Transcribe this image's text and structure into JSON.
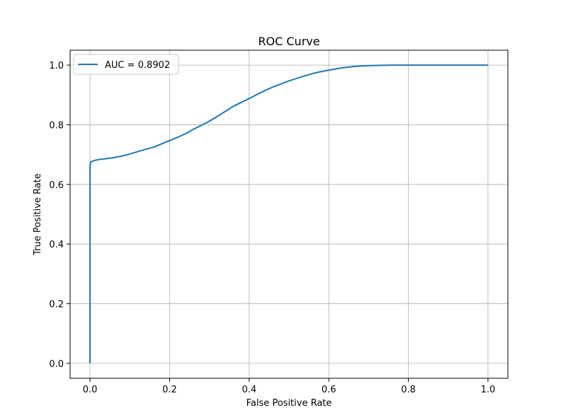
{
  "chart_data": {
    "type": "line",
    "title": "ROC Curve",
    "xlabel": "False Positive Rate",
    "ylabel": "True Positive Rate",
    "xlim": [
      -0.05,
      1.05
    ],
    "ylim": [
      -0.05,
      1.05
    ],
    "xticks": [
      "0.0",
      "0.2",
      "0.4",
      "0.6",
      "0.8",
      "1.0"
    ],
    "yticks": [
      "0.0",
      "0.2",
      "0.4",
      "0.6",
      "0.8",
      "1.0"
    ],
    "grid": true,
    "legend_position": "top-left",
    "series": [
      {
        "name": "AUC = 0.8902",
        "color": "#1f77b4",
        "x": [
          0.0,
          0.0,
          0.0,
          0.002,
          0.01,
          0.02,
          0.04,
          0.06,
          0.08,
          0.1,
          0.12,
          0.14,
          0.16,
          0.18,
          0.2,
          0.22,
          0.24,
          0.26,
          0.28,
          0.3,
          0.32,
          0.34,
          0.36,
          0.38,
          0.4,
          0.42,
          0.44,
          0.46,
          0.48,
          0.5,
          0.52,
          0.54,
          0.56,
          0.58,
          0.6,
          0.62,
          0.64,
          0.66,
          0.68,
          0.7,
          0.72,
          0.76,
          0.8,
          0.9,
          1.0
        ],
        "y": [
          0.0,
          0.6,
          0.665,
          0.675,
          0.68,
          0.683,
          0.686,
          0.69,
          0.695,
          0.702,
          0.71,
          0.718,
          0.725,
          0.736,
          0.747,
          0.758,
          0.77,
          0.785,
          0.798,
          0.812,
          0.828,
          0.845,
          0.862,
          0.875,
          0.888,
          0.902,
          0.915,
          0.927,
          0.937,
          0.947,
          0.956,
          0.964,
          0.972,
          0.978,
          0.983,
          0.988,
          0.992,
          0.995,
          0.997,
          0.998,
          0.999,
          1.0,
          1.0,
          1.0,
          1.0
        ]
      }
    ]
  }
}
